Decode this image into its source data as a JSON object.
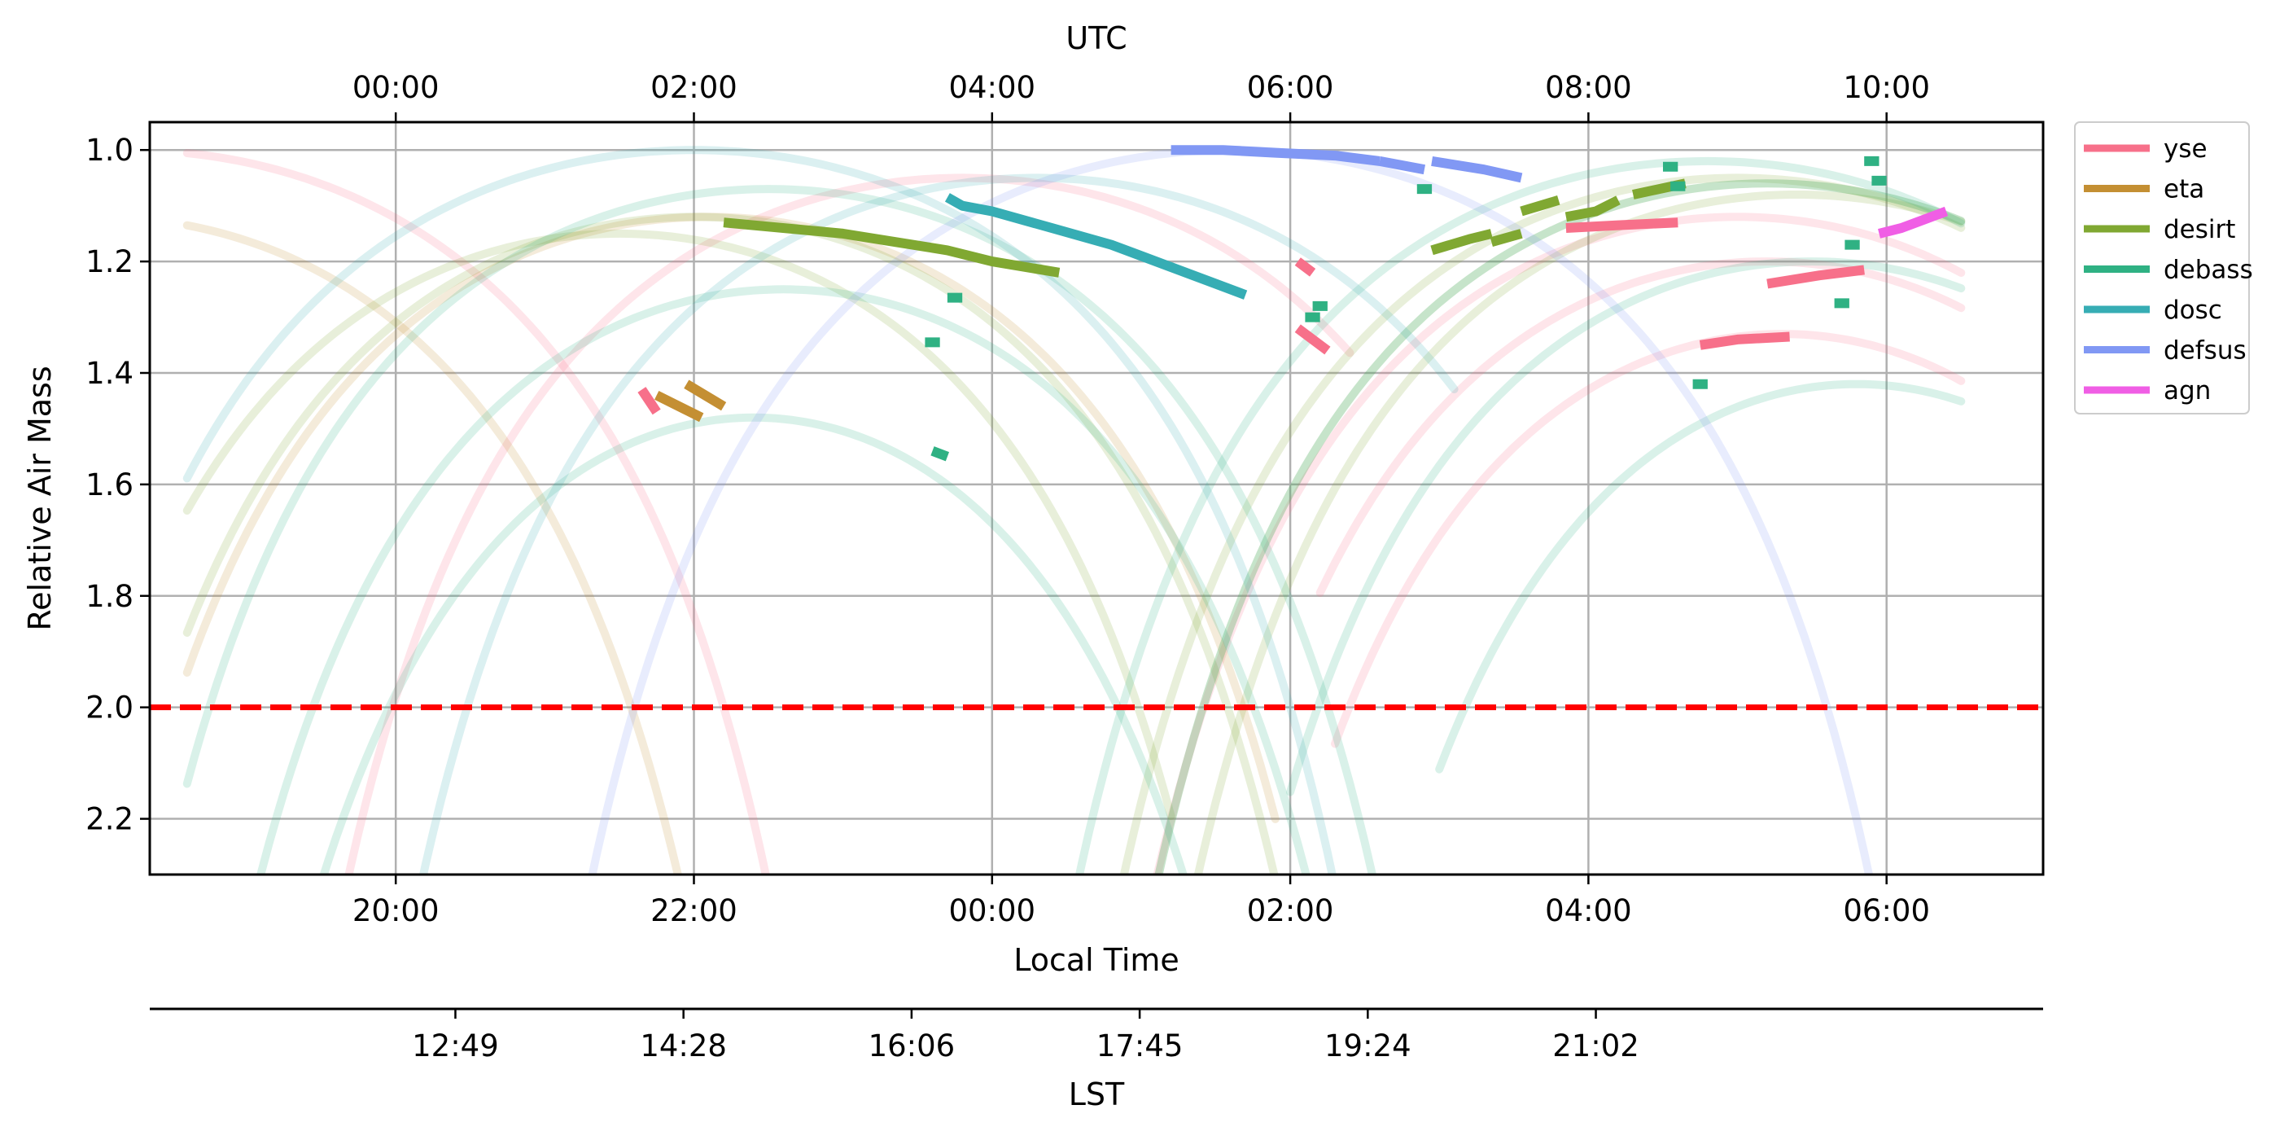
{
  "chart_data": {
    "type": "line",
    "xlabel": "Local Time",
    "ylabel": "Relative Air Mass",
    "top_axis_label": "UTC",
    "bottom_axis_label": "LST",
    "ylim": [
      2.3,
      0.95
    ],
    "y_inverted": true,
    "xlim_hours_local": [
      -5.65,
      7.05
    ],
    "local_ticks": [
      "20:00",
      "22:00",
      "00:00",
      "02:00",
      "04:00",
      "06:00"
    ],
    "utc_ticks": [
      "00:00",
      "02:00",
      "04:00",
      "06:00",
      "08:00",
      "10:00"
    ],
    "lst_ticks": [
      "12:49",
      "14:28",
      "16:06",
      "17:45",
      "19:24",
      "21:02"
    ],
    "y_ticks": [
      "1.0",
      "1.2",
      "1.4",
      "1.6",
      "1.8",
      "2.0",
      "2.2"
    ],
    "grid": true,
    "legend_position": "outside-top-right",
    "limit_line": {
      "y": 2.0,
      "color": "#ff0000",
      "style": "dashed"
    },
    "series": [
      {
        "name": "yse",
        "color": "#f7708a",
        "curves": [
          {
            "peak_local": -5.8,
            "min_airmass": 1.0,
            "x_range": [
              -5.4,
              -0.8
            ]
          },
          {
            "peak_local": -0.2,
            "min_airmass": 1.05,
            "x_range": [
              -5.4,
              2.4
            ]
          },
          {
            "peak_local": 5.0,
            "min_airmass": 1.12,
            "x_range": [
              0.5,
              6.5
            ]
          },
          {
            "peak_local": 5.2,
            "min_airmass": 1.2,
            "x_range": [
              2.2,
              6.5
            ]
          },
          {
            "peak_local": 5.3,
            "min_airmass": 1.33,
            "x_range": [
              2.3,
              6.5
            ]
          }
        ],
        "segments": [
          [
            [
              -2.35,
              1.43
            ],
            [
              -2.25,
              1.47
            ]
          ],
          [
            [
              2.05,
              1.2
            ],
            [
              2.15,
              1.22
            ]
          ],
          [
            [
              2.05,
              1.32
            ],
            [
              2.25,
              1.36
            ]
          ],
          [
            [
              3.85,
              1.14
            ],
            [
              4.2,
              1.135
            ],
            [
              4.6,
              1.13
            ]
          ],
          [
            [
              4.75,
              1.35
            ],
            [
              5.0,
              1.34
            ],
            [
              5.35,
              1.335
            ]
          ],
          [
            [
              5.2,
              1.24
            ],
            [
              5.55,
              1.225
            ],
            [
              5.85,
              1.215
            ]
          ]
        ]
      },
      {
        "name": "eta",
        "color": "#c48f33",
        "curves": [
          {
            "peak_local": -6.0,
            "min_airmass": 1.12,
            "x_range": [
              -5.4,
              -0.6
            ]
          },
          {
            "peak_local": -1.9,
            "min_airmass": 1.12,
            "x_range": [
              -5.4,
              1.9
            ]
          }
        ],
        "segments": [
          [
            [
              -2.25,
              1.44
            ],
            [
              -1.95,
              1.48
            ]
          ],
          [
            [
              -2.05,
              1.42
            ],
            [
              -1.8,
              1.46
            ]
          ]
        ]
      },
      {
        "name": "desirt",
        "color": "#80a832",
        "curves": [
          {
            "peak_local": -2.0,
            "min_airmass": 1.12,
            "x_range": [
              -5.4,
              2.3
            ]
          },
          {
            "peak_local": -2.5,
            "min_airmass": 1.15,
            "x_range": [
              -5.4,
              1.2
            ]
          },
          {
            "peak_local": 5.0,
            "min_airmass": 1.05,
            "x_range": [
              0.2,
              6.5
            ]
          },
          {
            "peak_local": 5.2,
            "min_airmass": 1.06,
            "x_range": [
              0.3,
              6.5
            ]
          },
          {
            "peak_local": 5.4,
            "min_airmass": 1.08,
            "x_range": [
              0.4,
              6.5
            ]
          }
        ],
        "segments": [
          [
            [
              -1.8,
              1.13
            ],
            [
              -1.0,
              1.15
            ],
            [
              -0.3,
              1.18
            ],
            [
              0.0,
              1.2
            ],
            [
              0.45,
              1.22
            ]
          ],
          [
            [
              2.95,
              1.18
            ],
            [
              3.2,
              1.16
            ],
            [
              3.35,
              1.15
            ]
          ],
          [
            [
              3.35,
              1.165
            ],
            [
              3.55,
              1.15
            ]
          ],
          [
            [
              3.55,
              1.11
            ],
            [
              3.8,
              1.09
            ]
          ],
          [
            [
              3.85,
              1.12
            ],
            [
              4.05,
              1.11
            ],
            [
              4.2,
              1.09
            ]
          ],
          [
            [
              4.3,
              1.08
            ],
            [
              4.65,
              1.06
            ]
          ]
        ]
      },
      {
        "name": "debass",
        "color": "#2fb183",
        "curves": [
          {
            "peak_local": -1.5,
            "min_airmass": 1.07,
            "x_range": [
              -5.4,
              3.0
            ]
          },
          {
            "peak_local": -1.4,
            "min_airmass": 1.25,
            "x_range": [
              -5.4,
              3.3
            ]
          },
          {
            "peak_local": -1.6,
            "min_airmass": 1.48,
            "x_range": [
              -5.4,
              2.7
            ]
          },
          {
            "peak_local": 4.8,
            "min_airmass": 1.02,
            "x_range": [
              0.0,
              6.5
            ]
          },
          {
            "peak_local": 5.2,
            "min_airmass": 1.06,
            "x_range": [
              0.5,
              6.5
            ]
          },
          {
            "peak_local": 5.5,
            "min_airmass": 1.2,
            "x_range": [
              2.0,
              6.5
            ]
          },
          {
            "peak_local": 5.8,
            "min_airmass": 1.42,
            "x_range": [
              3.0,
              6.5
            ]
          }
        ],
        "segments": [
          [
            [
              -0.45,
              1.345
            ],
            [
              -0.35,
              1.345
            ]
          ],
          [
            [
              -0.4,
              1.54
            ],
            [
              -0.3,
              1.55
            ]
          ],
          [
            [
              -0.3,
              1.265
            ],
            [
              -0.2,
              1.265
            ]
          ],
          [
            [
              2.15,
              1.28
            ],
            [
              2.25,
              1.28
            ]
          ],
          [
            [
              2.1,
              1.3
            ],
            [
              2.2,
              1.3
            ]
          ],
          [
            [
              2.85,
              1.07
            ],
            [
              2.95,
              1.07
            ]
          ],
          [
            [
              4.5,
              1.03
            ],
            [
              4.6,
              1.03
            ]
          ],
          [
            [
              4.55,
              1.065
            ],
            [
              4.65,
              1.065
            ]
          ],
          [
            [
              4.7,
              1.42
            ],
            [
              4.8,
              1.42
            ]
          ],
          [
            [
              5.65,
              1.275
            ],
            [
              5.75,
              1.275
            ]
          ],
          [
            [
              5.72,
              1.17
            ],
            [
              5.82,
              1.17
            ]
          ],
          [
            [
              5.85,
              1.02
            ],
            [
              5.95,
              1.02
            ]
          ],
          [
            [
              5.9,
              1.055
            ],
            [
              6.0,
              1.055
            ]
          ]
        ]
      },
      {
        "name": "dosc",
        "color": "#36adb4",
        "curves": [
          {
            "peak_local": -2.0,
            "min_airmass": 1.0,
            "x_range": [
              -5.4,
              3.0
            ]
          },
          {
            "peak_local": 0.3,
            "min_airmass": 1.05,
            "x_range": [
              -5.4,
              3.1
            ]
          }
        ],
        "segments": [
          [
            [
              -0.3,
              1.085
            ],
            [
              -0.2,
              1.1
            ],
            [
              0.0,
              1.11
            ],
            [
              0.4,
              1.14
            ],
            [
              0.8,
              1.17
            ],
            [
              1.2,
              1.21
            ],
            [
              1.5,
              1.24
            ],
            [
              1.7,
              1.26
            ]
          ]
        ]
      },
      {
        "name": "defsus",
        "color": "#8198f4",
        "curves": [
          {
            "peak_local": 1.6,
            "min_airmass": 1.0,
            "x_range": [
              -3.6,
              6.5
            ]
          }
        ],
        "segments": [
          [
            [
              1.2,
              1.0
            ],
            [
              1.55,
              1.0
            ],
            [
              1.9,
              1.005
            ],
            [
              2.3,
              1.01
            ],
            [
              2.6,
              1.02
            ]
          ],
          [
            [
              2.6,
              1.02
            ],
            [
              2.9,
              1.035
            ]
          ],
          [
            [
              2.95,
              1.02
            ],
            [
              3.3,
              1.035
            ],
            [
              3.55,
              1.05
            ]
          ]
        ]
      },
      {
        "name": "agn",
        "color": "#f05ee5",
        "curves": [],
        "segments": [
          [
            [
              5.95,
              1.15
            ],
            [
              6.1,
              1.14
            ],
            [
              6.4,
              1.11
            ]
          ]
        ]
      }
    ]
  }
}
